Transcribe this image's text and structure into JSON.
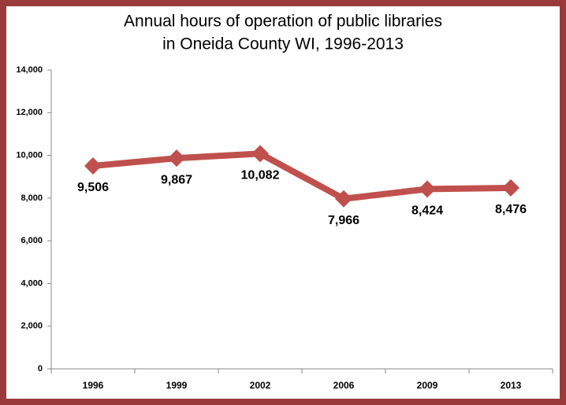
{
  "chart_data": {
    "type": "line",
    "title": [
      "Annual hours of operation of public libraries",
      "in Oneida County WI, 1996-2013"
    ],
    "categories": [
      "1996",
      "1999",
      "2002",
      "2006",
      "2009",
      "2013"
    ],
    "values": [
      9506,
      9867,
      10082,
      7966,
      8424,
      8476
    ],
    "value_labels": [
      "9,506",
      "9,867",
      "10,082",
      "7,966",
      "8,424",
      "8,476"
    ],
    "color": "#c0504d",
    "ylim": [
      0,
      14000
    ],
    "yticks": [
      0,
      {
        "value": 2000,
        "label": "2,000"
      },
      {
        "value": 4000,
        "label": "4,000"
      },
      {
        "value": 6000,
        "label": "6,000"
      },
      {
        "value": 8000,
        "label": "8,000"
      },
      {
        "value": 10000,
        "label": "10,000"
      },
      {
        "value": 12000,
        "label": "12,000"
      },
      {
        "value": 14000,
        "label": "14,000"
      }
    ],
    "grid": false
  }
}
